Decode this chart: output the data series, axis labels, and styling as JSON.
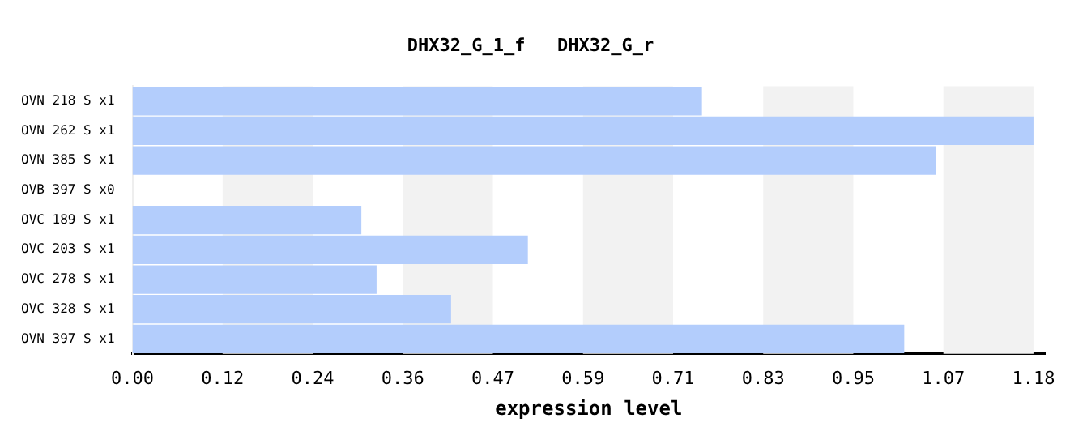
{
  "chart_data": {
    "type": "bar",
    "orientation": "horizontal",
    "title": "DHX32_G_1_f   DHX32_G_r",
    "xlabel": "expression level",
    "categories": [
      "OVN 218 S x1",
      "OVN 262 S x1",
      "OVN 385 S x1",
      "OVB 397 S x0",
      "OVC 189 S x1",
      "OVC 203 S x1",
      "OVC 278 S x1",
      "OVC 328 S x1",
      "OVN 397 S x1"
    ],
    "values": [
      0.749,
      1.185,
      1.057,
      0,
      0.301,
      0.52,
      0.321,
      0.419,
      1.015
    ],
    "color": "#b3cdfc",
    "xlim": [
      0,
      1.2
    ],
    "xticks": [
      {
        "value": 0,
        "label": "0.00"
      },
      {
        "value": 0.1185,
        "label": "0.12"
      },
      {
        "value": 0.237,
        "label": "0.24"
      },
      {
        "value": 0.3555,
        "label": "0.36"
      },
      {
        "value": 0.474,
        "label": "0.47"
      },
      {
        "value": 0.5925,
        "label": "0.59"
      },
      {
        "value": 0.711,
        "label": "0.71"
      },
      {
        "value": 0.8295,
        "label": "0.83"
      },
      {
        "value": 0.948,
        "label": "0.95"
      },
      {
        "value": 1.0665,
        "label": "1.07"
      },
      {
        "value": 1.185,
        "label": "1.18"
      }
    ],
    "bands": [
      {
        "axis": "x",
        "from": 0.1185,
        "to": 0.237,
        "color": "#f2f2f2"
      },
      {
        "axis": "x",
        "from": 0.3555,
        "to": 0.474,
        "color": "#f2f2f2"
      },
      {
        "axis": "x",
        "from": 0.5925,
        "to": 0.711,
        "color": "#f2f2f2"
      },
      {
        "axis": "x",
        "from": 0.8295,
        "to": 0.948,
        "color": "#f2f2f2"
      },
      {
        "axis": "x",
        "from": 1.0665,
        "to": 1.185,
        "color": "#f2f2f2"
      }
    ],
    "grid": false,
    "legend": false
  }
}
